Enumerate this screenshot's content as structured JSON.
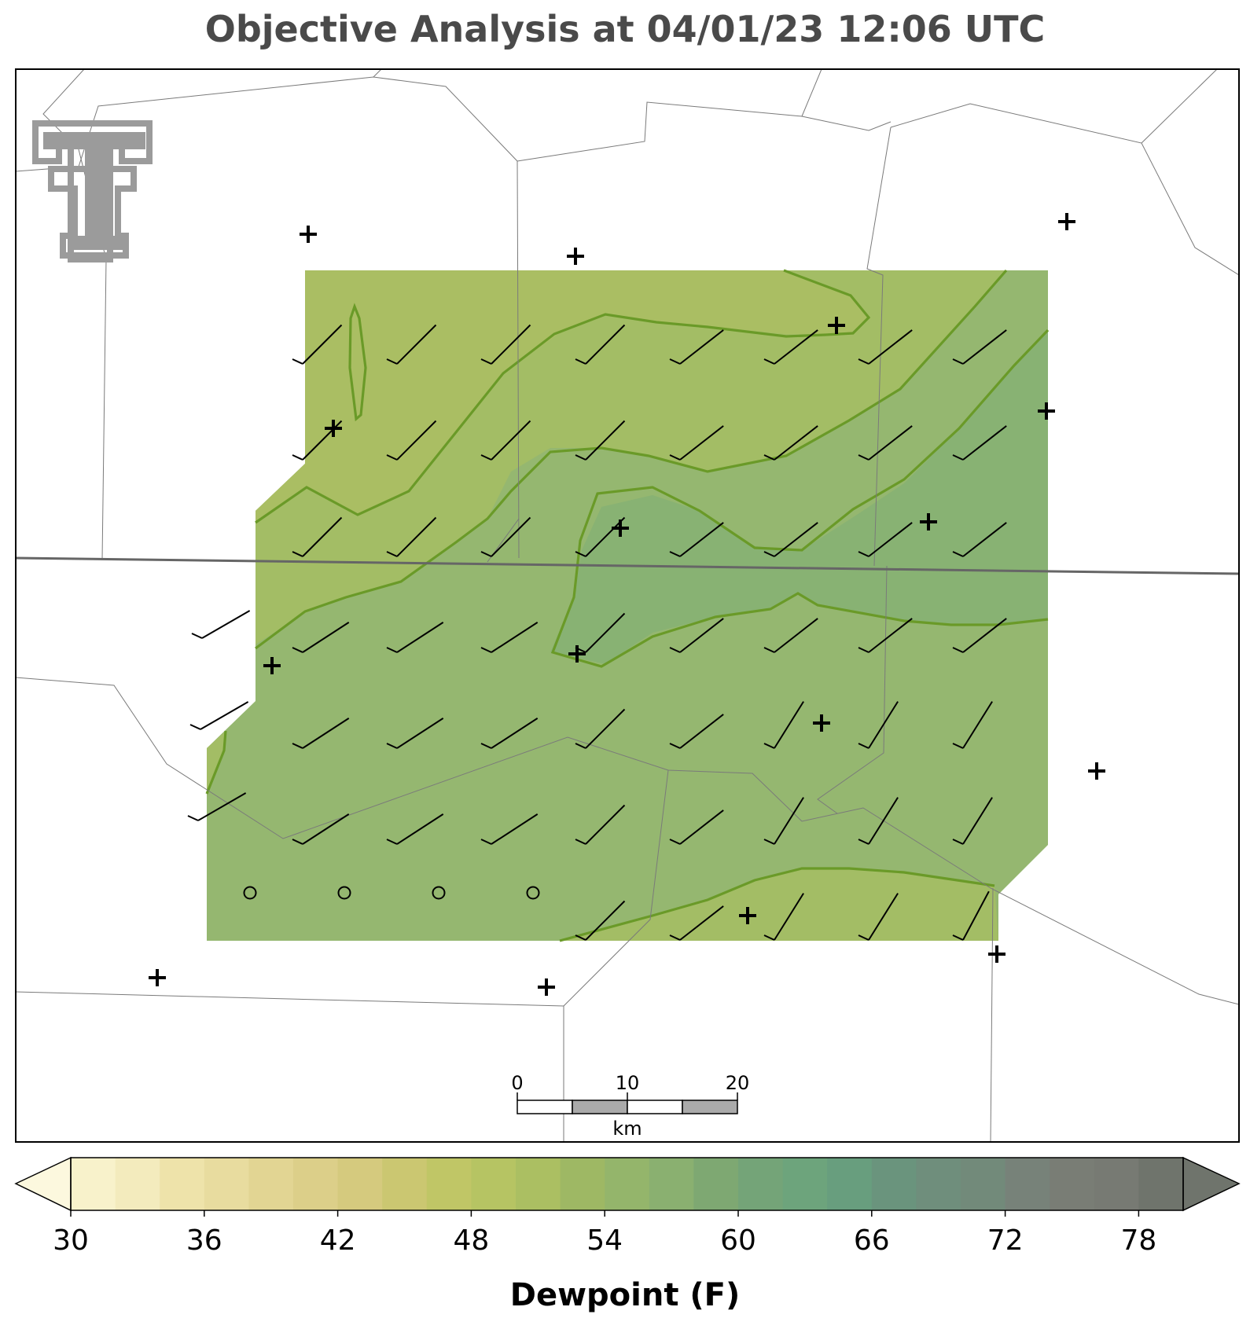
{
  "title": "Objective Analysis at 04/01/23 12:06 UTC",
  "colorbar": {
    "label": "Dewpoint (F)",
    "min": 30,
    "max": 80,
    "step": 2,
    "ticks": [
      30,
      36,
      42,
      48,
      54,
      60,
      66,
      72,
      78
    ],
    "extend": "both",
    "colors": [
      "#fcf8de",
      "#f8f2cb",
      "#f3ebbd",
      "#eee3aa",
      "#e8dc9f",
      "#e2d593",
      "#dccf89",
      "#d5ca7e",
      "#cbc771",
      "#c0c666",
      "#b6c463",
      "#abbf62",
      "#9eb864",
      "#94b56b",
      "#8ab070",
      "#7ea872",
      "#74a478",
      "#6da47c",
      "#689e7e",
      "#6a947d",
      "#6f8e7c",
      "#728a7a",
      "#778279",
      "#797d75",
      "#777a73",
      "#6f746c"
    ]
  },
  "scale_bar": {
    "ticks": [
      "0",
      "10",
      "20"
    ],
    "unit": "km"
  },
  "logo": {
    "name": "Texas Tech Double T"
  },
  "field": {
    "variable": "dewpoint",
    "units": "F",
    "contour_levels": [
      50,
      52,
      54,
      56
    ],
    "fill_colors": {
      "lt50": "#aabe63",
      "50_52": "#a3bd65",
      "52_54": "#95b770",
      "54_56": "#88b273",
      "contour_line": "#6a9a28"
    }
  },
  "wind_barbs": {
    "description": "southwesterly winds, mostly 5-10 kt",
    "calm_count": 4
  },
  "stations_plotted": 15
}
